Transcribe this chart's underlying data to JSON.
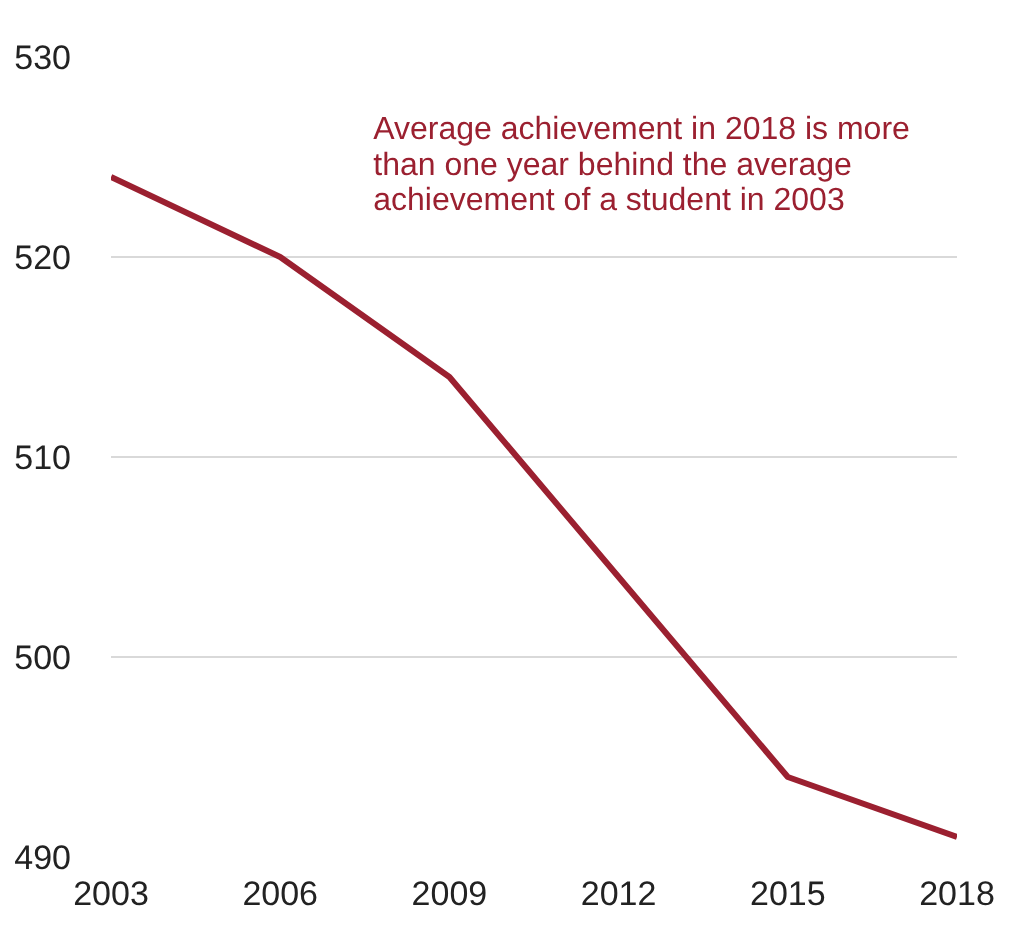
{
  "chart_data": {
    "type": "line",
    "x": [
      2003,
      2006,
      2009,
      2012,
      2015,
      2018
    ],
    "series": [
      {
        "color": "#9b2030",
        "values": [
          524,
          520,
          514,
          504,
          494,
          491
        ]
      }
    ],
    "xlim": [
      2003,
      2018
    ],
    "xticks": [
      2003,
      2006,
      2009,
      2012,
      2015,
      2018
    ],
    "ylim": [
      490,
      530
    ],
    "yticks": [
      490,
      500,
      510,
      520,
      530
    ],
    "grid": "y",
    "annotations": [
      "Average achievement in 2018 is more\nthan one year behind the average\nachievement of a student in 2003"
    ]
  }
}
